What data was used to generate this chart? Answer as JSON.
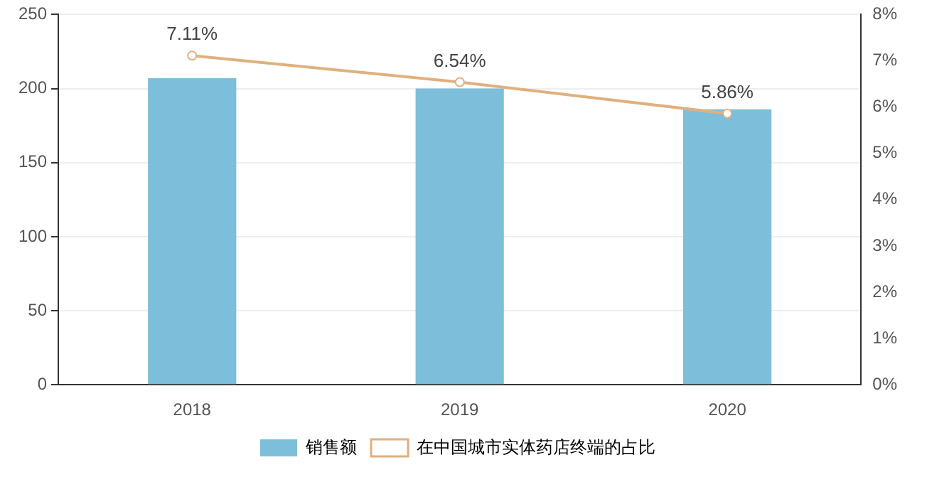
{
  "chart_data": {
    "type": "bar",
    "categories": [
      "2018",
      "2019",
      "2020"
    ],
    "series": [
      {
        "name": "销售额",
        "color": "#7dbedb",
        "values": [
          207,
          200,
          186
        ]
      },
      {
        "name": "在中国城市实体药店终端的占比",
        "type": "line",
        "axis": "y2",
        "color": "#e0b07e",
        "marker": "circle",
        "values": [
          7.11,
          6.54,
          5.86
        ],
        "value_labels": [
          "7.11%",
          "6.54%",
          "5.86%"
        ]
      }
    ],
    "ylim": [
      0,
      250
    ],
    "yticks": [
      0,
      50,
      100,
      150,
      200,
      250
    ],
    "y2lim": [
      0,
      8
    ],
    "y2ticks": [
      {
        "value": 0,
        "label": "0%"
      },
      {
        "value": 1,
        "label": "1%"
      },
      {
        "value": 2,
        "label": "2%"
      },
      {
        "value": 3,
        "label": "3%"
      },
      {
        "value": 4,
        "label": "4%"
      },
      {
        "value": 5,
        "label": "5%"
      },
      {
        "value": 6,
        "label": "6%"
      },
      {
        "value": 7,
        "label": "7%"
      },
      {
        "value": 8,
        "label": "8%"
      }
    ],
    "grid": "y",
    "legend": "bottom"
  }
}
